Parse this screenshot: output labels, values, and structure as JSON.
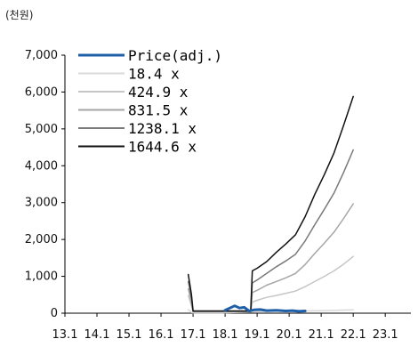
{
  "chart_data": {
    "type": "line",
    "unit_label": "(천원)",
    "ylim": [
      0,
      7000
    ],
    "y_ticks": [
      "0",
      "1,000",
      "2,000",
      "3,000",
      "4,000",
      "5,000",
      "6,000",
      "7,000"
    ],
    "y_tick_values": [
      0,
      1000,
      2000,
      3000,
      4000,
      5000,
      6000,
      7000
    ],
    "x_ticks": [
      "13.1",
      "14.1",
      "15.1",
      "16.1",
      "17.1",
      "18.1",
      "19.1",
      "20.1",
      "21.1",
      "22.1",
      "23.1"
    ],
    "x_tick_values": [
      2013,
      2014,
      2015,
      2016,
      2017,
      2018,
      2019,
      2020,
      2021,
      2022,
      2023
    ],
    "xlim": [
      2013,
      2023.8
    ],
    "legend_position": "top-left",
    "series": [
      {
        "name": "Price(adj.)",
        "color": "#1f5fa8",
        "width": 3,
        "points": [
          [
            2018.0,
            80
          ],
          [
            2018.15,
            140
          ],
          [
            2018.3,
            200
          ],
          [
            2018.45,
            140
          ],
          [
            2018.6,
            160
          ],
          [
            2018.75,
            60
          ],
          [
            2018.9,
            90
          ],
          [
            2019.1,
            100
          ],
          [
            2019.3,
            70
          ],
          [
            2019.6,
            80
          ],
          [
            2019.9,
            60
          ],
          [
            2020.1,
            70
          ],
          [
            2020.3,
            50
          ],
          [
            2020.5,
            60
          ]
        ]
      },
      {
        "name": "18.4 x",
        "color": "#d9d9d9",
        "width": 1.5,
        "points": [
          [
            2016.85,
            100
          ],
          [
            2016.95,
            20
          ],
          [
            2017.0,
            10
          ],
          [
            2017.6,
            10
          ],
          [
            2017.9,
            10
          ],
          [
            2018.8,
            30
          ],
          [
            2019.0,
            40
          ],
          [
            2019.5,
            50
          ],
          [
            2020.0,
            70
          ],
          [
            2020.5,
            60
          ],
          [
            2021.0,
            70
          ],
          [
            2021.5,
            80
          ],
          [
            2022.0,
            90
          ]
        ]
      },
      {
        "name": "424.9 x",
        "color": "#c6c6c6",
        "width": 1.5,
        "points": [
          [
            2016.85,
            480
          ],
          [
            2016.95,
            200
          ],
          [
            2017.0,
            30
          ],
          [
            2017.6,
            30
          ],
          [
            2017.9,
            30
          ],
          [
            2018.8,
            30
          ],
          [
            2018.85,
            300
          ],
          [
            2019.0,
            350
          ],
          [
            2019.3,
            430
          ],
          [
            2019.6,
            480
          ],
          [
            2019.9,
            540
          ],
          [
            2020.2,
            600
          ],
          [
            2020.5,
            720
          ],
          [
            2020.8,
            860
          ],
          [
            2021.1,
            1000
          ],
          [
            2021.4,
            1150
          ],
          [
            2021.7,
            1330
          ],
          [
            2022.0,
            1540
          ]
        ]
      },
      {
        "name": "831.5 x",
        "color": "#a6a6a6",
        "width": 1.5,
        "points": [
          [
            2016.85,
            660
          ],
          [
            2016.95,
            300
          ],
          [
            2017.0,
            40
          ],
          [
            2017.6,
            40
          ],
          [
            2017.9,
            40
          ],
          [
            2018.8,
            40
          ],
          [
            2018.85,
            560
          ],
          [
            2019.0,
            620
          ],
          [
            2019.3,
            760
          ],
          [
            2019.6,
            860
          ],
          [
            2019.9,
            960
          ],
          [
            2020.2,
            1080
          ],
          [
            2020.5,
            1320
          ],
          [
            2020.8,
            1620
          ],
          [
            2021.1,
            1900
          ],
          [
            2021.4,
            2200
          ],
          [
            2021.7,
            2570
          ],
          [
            2022.0,
            2970
          ]
        ]
      },
      {
        "name": "1238.1 x",
        "color": "#7a7a7a",
        "width": 1.5,
        "points": [
          [
            2016.85,
            860
          ],
          [
            2016.95,
            400
          ],
          [
            2017.0,
            50
          ],
          [
            2017.6,
            50
          ],
          [
            2017.9,
            50
          ],
          [
            2018.8,
            50
          ],
          [
            2018.85,
            820
          ],
          [
            2019.0,
            900
          ],
          [
            2019.3,
            1080
          ],
          [
            2019.6,
            1260
          ],
          [
            2019.9,
            1420
          ],
          [
            2020.2,
            1600
          ],
          [
            2020.5,
            1960
          ],
          [
            2020.8,
            2400
          ],
          [
            2021.1,
            2820
          ],
          [
            2021.4,
            3260
          ],
          [
            2021.7,
            3820
          ],
          [
            2022.0,
            4430
          ]
        ]
      },
      {
        "name": "1644.6 x",
        "color": "#111111",
        "width": 1.5,
        "points": [
          [
            2016.85,
            1050
          ],
          [
            2016.95,
            500
          ],
          [
            2017.0,
            60
          ],
          [
            2017.6,
            60
          ],
          [
            2017.9,
            60
          ],
          [
            2018.8,
            60
          ],
          [
            2018.85,
            1150
          ],
          [
            2019.0,
            1220
          ],
          [
            2019.3,
            1400
          ],
          [
            2019.6,
            1650
          ],
          [
            2019.9,
            1880
          ],
          [
            2020.2,
            2130
          ],
          [
            2020.5,
            2620
          ],
          [
            2020.8,
            3220
          ],
          [
            2021.1,
            3760
          ],
          [
            2021.4,
            4350
          ],
          [
            2021.7,
            5100
          ],
          [
            2022.0,
            5880
          ]
        ]
      }
    ]
  }
}
